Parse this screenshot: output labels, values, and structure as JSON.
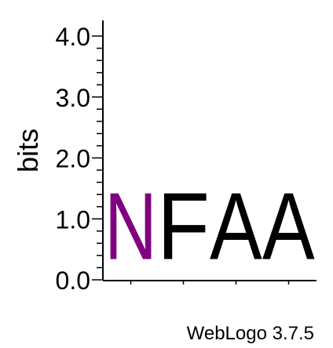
{
  "chart_data": {
    "type": "sequence_logo",
    "ylabel": "bits",
    "ylim": [
      0,
      4.0
    ],
    "yticks": [
      {
        "value": 0.0,
        "label": "0.0"
      },
      {
        "value": 1.0,
        "label": "1.0"
      },
      {
        "value": 2.0,
        "label": "2.0"
      },
      {
        "value": 3.0,
        "label": "3.0"
      },
      {
        "value": 4.0,
        "label": "4.0"
      }
    ],
    "minor_tick_step": 0.2,
    "positions": [
      {
        "letter": "N",
        "bits": 1.75,
        "color": "#800080"
      },
      {
        "letter": "F",
        "bits": 1.75,
        "color": "#000000"
      },
      {
        "letter": "A",
        "bits": 1.75,
        "color": "#000000"
      },
      {
        "letter": "A",
        "bits": 1.75,
        "color": "#000000"
      }
    ]
  },
  "footer": "WebLogo 3.7.5"
}
